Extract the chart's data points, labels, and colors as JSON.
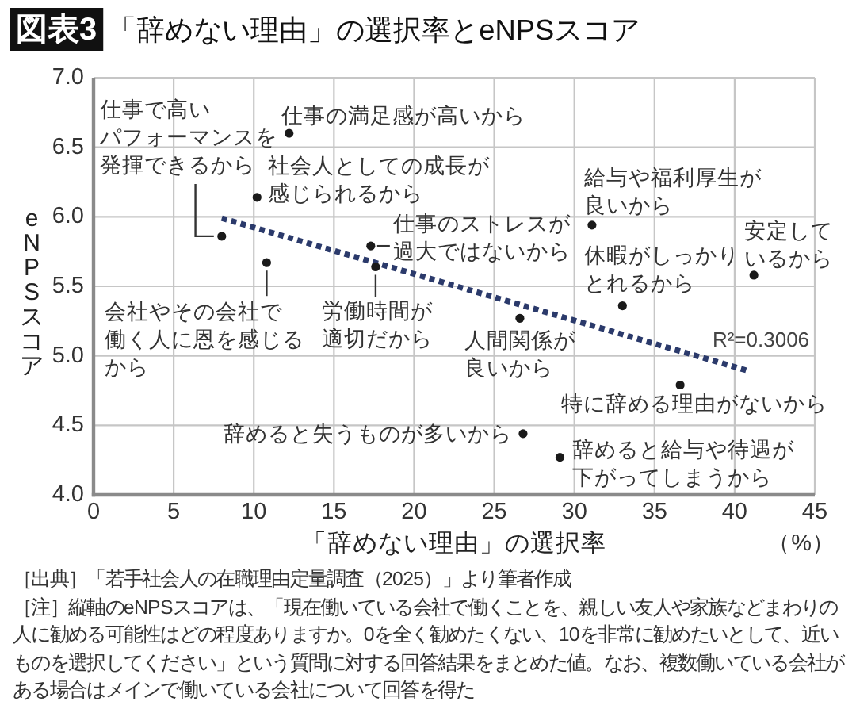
{
  "chart_data": {
    "type": "scatter",
    "title": "「辞めない理由」の選択率とeNPSスコア",
    "xlabel": "「辞めない理由」の選択率",
    "ylabel": "eNPSスコア",
    "series": [
      {
        "type": "scatter",
        "color": "#1a1a1a",
        "marker": "circle",
        "x": [
          8.0,
          12.2,
          10.2,
          10.8,
          17.3,
          17.6,
          31.1,
          41.2,
          33.0,
          26.6,
          36.6,
          26.8,
          29.1
        ],
        "values": [
          5.86,
          6.6,
          6.14,
          5.67,
          5.79,
          5.64,
          5.94,
          5.58,
          5.36,
          5.27,
          4.79,
          4.44,
          4.27
        ]
      },
      {
        "type": "line",
        "color": "#2b3a6b",
        "line_style": "dotted",
        "x": [
          8.0,
          40.9
        ],
        "values": [
          5.99,
          4.89
        ]
      }
    ],
    "xlim": [
      0,
      45
    ],
    "ylim": [
      4,
      7
    ],
    "xticks": [
      0,
      5,
      10,
      15,
      20,
      25,
      30,
      35,
      40,
      45
    ],
    "yticks": [
      {
        "value": 4,
        "label": "4.0"
      },
      {
        "value": 4.5,
        "label": "4.5"
      },
      {
        "value": 5,
        "label": "5.0"
      },
      {
        "value": 5.5,
        "label": "5.5"
      },
      {
        "value": 6,
        "label": "6.0"
      },
      {
        "value": 6.5,
        "label": "6.5"
      },
      {
        "value": 7,
        "label": "7.0"
      }
    ],
    "grid": true,
    "annotations": [
      "図表3",
      "（%）",
      "R²=0.3006",
      "［出典］「若手社会人の在職理由定量調査（2025）」より筆者作成",
      "［注］縦軸のeNPSスコアは、「現在働いている会社で働くことを、親しい友人や家族などまわりの人に勧める可能性はどの程度ありますか。0を全く勧めたくない、10を非常に勧めたいとして、近いものを選択してください」という質問に対する回答結果をまとめた値。なお、複数働いている会社がある場合はメインで働いている会社について回答を得た",
      {
        "text": "仕事で高いパフォーマンスを発揮できるから",
        "x": 8.0,
        "y": 5.86
      },
      {
        "text": "仕事の満足感が高いから",
        "x": 12.2,
        "y": 6.6
      },
      {
        "text": "社会人としての成長が感じられるから",
        "x": 10.2,
        "y": 6.14
      },
      {
        "text": "会社やその会社で働く人に恩を感じるから",
        "x": 10.8,
        "y": 5.67
      },
      {
        "text": "仕事のストレスが過大ではないから",
        "x": 17.3,
        "y": 5.79
      },
      {
        "text": "労働時間が適切だから",
        "x": 17.6,
        "y": 5.64
      },
      {
        "text": "給与や福利厚生が良いから",
        "x": 31.1,
        "y": 5.94
      },
      {
        "text": "安定しているから",
        "x": 41.2,
        "y": 5.58
      },
      {
        "text": "休暇がしっかりとれるから",
        "x": 33.0,
        "y": 5.36
      },
      {
        "text": "人間関係が良いから",
        "x": 26.6,
        "y": 5.27
      },
      {
        "text": "特に辞める理由がないから",
        "x": 36.6,
        "y": 4.79
      },
      {
        "text": "辞めると失うものが多いから",
        "x": 26.8,
        "y": 4.44
      },
      {
        "text": "辞めると給与や待遇が下がってしまうから",
        "x": 29.1,
        "y": 4.27
      }
    ]
  }
}
